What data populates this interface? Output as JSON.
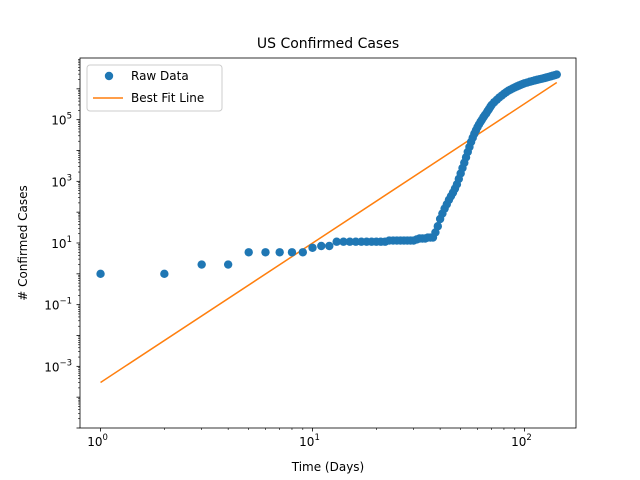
{
  "chart_data": {
    "type": "scatter",
    "title": "US Confirmed Cases",
    "xlabel": "Time (Days)",
    "ylabel": "# Confirmed Cases",
    "xscale": "log",
    "yscale": "log",
    "xlim": [
      0.8,
      175
    ],
    "ylim": [
      1e-05,
      10000000
    ],
    "x_ticks": [
      {
        "value": 1,
        "base": "10",
        "exp": "0"
      },
      {
        "value": 10,
        "base": "10",
        "exp": "1"
      },
      {
        "value": 100,
        "base": "10",
        "exp": "2"
      }
    ],
    "y_ticks": [
      {
        "value": 0.001,
        "base": "10",
        "exp": "−3"
      },
      {
        "value": 0.1,
        "base": "10",
        "exp": "−1"
      },
      {
        "value": 10,
        "base": "10",
        "exp": "1"
      },
      {
        "value": 1000,
        "base": "10",
        "exp": "3"
      },
      {
        "value": 100000,
        "base": "10",
        "exp": "5"
      }
    ],
    "legend": {
      "position": "top-left",
      "entries": [
        "Raw Data",
        "Best Fit Line"
      ]
    },
    "colors": {
      "raw": "#1f77b4",
      "fit": "#ff7f0e"
    },
    "series": [
      {
        "name": "Raw Data",
        "type": "scatter",
        "x": [
          1,
          2,
          3,
          4,
          5,
          6,
          7,
          8,
          9,
          10,
          11,
          12,
          13,
          14,
          15,
          16,
          17,
          18,
          19,
          20,
          21,
          22,
          23,
          24,
          25,
          26,
          27,
          28,
          29,
          30,
          31,
          32,
          33,
          34,
          35,
          36,
          37,
          38,
          39,
          40,
          41,
          42,
          43,
          44,
          45,
          46,
          47,
          48,
          49,
          50,
          51,
          52,
          53,
          54,
          55,
          56,
          57,
          58,
          59,
          60,
          61,
          62,
          63,
          64,
          65,
          66,
          67,
          68,
          69,
          70,
          72,
          74,
          76,
          78,
          80,
          82,
          84,
          86,
          88,
          90,
          92,
          94,
          96,
          98,
          100,
          103,
          106,
          109,
          112,
          115,
          118,
          121,
          124,
          127,
          130,
          133,
          136,
          139,
          142
        ],
        "y": [
          1,
          1,
          2,
          2,
          5,
          5,
          5,
          5,
          5,
          7,
          8,
          8,
          11,
          11,
          11,
          11,
          11,
          11,
          11,
          11,
          11,
          11,
          12,
          12,
          12,
          12,
          12,
          12,
          12,
          12,
          13,
          14,
          14,
          14,
          15,
          15,
          15,
          22,
          35,
          60,
          90,
          130,
          180,
          250,
          330,
          430,
          580,
          800,
          1200,
          1800,
          2700,
          4000,
          6000,
          9000,
          13000,
          19000,
          26000,
          35000,
          45000,
          57000,
          70000,
          85000,
          100000,
          120000,
          140000,
          160000,
          190000,
          220000,
          260000,
          300000,
          370000,
          440000,
          520000,
          600000,
          690000,
          780000,
          870000,
          950000,
          1030000,
          1110000,
          1190000,
          1270000,
          1350000,
          1430000,
          1510000,
          1600000,
          1700000,
          1790000,
          1880000,
          1970000,
          2060000,
          2140000,
          2230000,
          2330000,
          2430000,
          2540000,
          2660000,
          2780000,
          2900000
        ]
      },
      {
        "name": "Best Fit Line",
        "type": "line",
        "x": [
          1,
          142
        ],
        "y": [
          0.0003,
          1600000
        ]
      }
    ]
  }
}
